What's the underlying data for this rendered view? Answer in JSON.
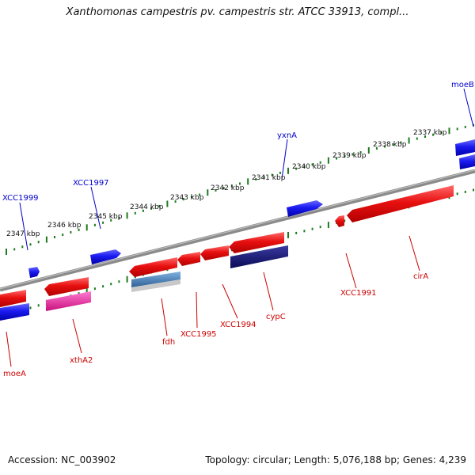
{
  "title": "Xanthomonas campestris pv. campestris str. ATCC 33913, compl...",
  "footer": {
    "accession": "Accession: NC_003902",
    "summary": "Topology: circular; Length: 5,076,188 bp; Genes: 4,239"
  },
  "colors": {
    "forward_strand": "#2020ee",
    "reverse_strand": "#ee1010",
    "backbone": "#888888",
    "ticks": "#1f7a1f",
    "special_magenta": "#e0229a",
    "special_navy": "#141470",
    "special_steel": "#3a6ea5"
  },
  "ticks": [
    "2347 kbp",
    "2346 kbp",
    "2345 kbp",
    "2344 kbp",
    "2343 kbp",
    "2342 kbp",
    "2341 kbp",
    "2340 kbp",
    "2339 kbp",
    "2338 kbp",
    "2337 kbp"
  ],
  "gene_labels_top": [
    "XCC1999",
    "XCC1997",
    "yxnA",
    "moeB"
  ],
  "gene_labels_bottom": [
    "moeA",
    "xthA2",
    "fdh",
    "XCC1995",
    "XCC1994",
    "cypC",
    "XCC1991",
    "cirA"
  ]
}
